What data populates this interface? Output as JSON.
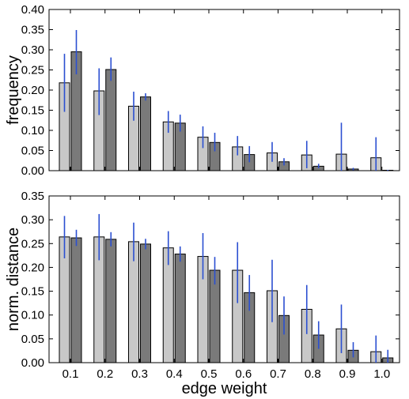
{
  "chart_data": [
    {
      "type": "bar",
      "ylabel": "frequency",
      "xlabel": "",
      "categories": [
        "0.1",
        "0.2",
        "0.3",
        "0.4",
        "0.5",
        "0.6",
        "0.7",
        "0.8",
        "0.9",
        "1.0"
      ],
      "ylim": [
        0,
        0.4
      ],
      "yticks": [
        "0.00",
        "0.05",
        "0.10",
        "0.15",
        "0.20",
        "0.25",
        "0.30",
        "0.35",
        "0.40"
      ],
      "series": [
        {
          "color": "#c8c8c8",
          "values": [
            0.218,
            0.198,
            0.16,
            0.121,
            0.083,
            0.059,
            0.044,
            0.039,
            0.041,
            0.032
          ],
          "err_low": [
            0.146,
            0.138,
            0.124,
            0.094,
            0.056,
            0.038,
            0.022,
            0.006,
            0.0,
            0.0
          ],
          "err_high": [
            0.29,
            0.254,
            0.196,
            0.148,
            0.11,
            0.086,
            0.071,
            0.074,
            0.119,
            0.083
          ]
        },
        {
          "color": "#7a7a7a",
          "values": [
            0.295,
            0.251,
            0.183,
            0.118,
            0.07,
            0.04,
            0.022,
            0.011,
            0.004,
            0.001
          ],
          "err_low": [
            0.239,
            0.223,
            0.174,
            0.097,
            0.048,
            0.021,
            0.013,
            0.006,
            0.001,
            0.0
          ],
          "err_high": [
            0.349,
            0.281,
            0.192,
            0.139,
            0.094,
            0.061,
            0.031,
            0.017,
            0.007,
            0.002
          ]
        }
      ],
      "error_bar_color": "#2b4fd1"
    },
    {
      "type": "bar",
      "ylabel": "norm. distance",
      "xlabel": "edge weight",
      "categories": [
        "0.1",
        "0.2",
        "0.3",
        "0.4",
        "0.5",
        "0.6",
        "0.7",
        "0.8",
        "0.9",
        "1.0"
      ],
      "ylim": [
        0,
        0.35
      ],
      "yticks": [
        "0.00",
        "0.05",
        "0.10",
        "0.15",
        "0.20",
        "0.25",
        "0.30",
        "0.35"
      ],
      "series": [
        {
          "color": "#c8c8c8",
          "values": [
            0.264,
            0.264,
            0.254,
            0.241,
            0.223,
            0.194,
            0.151,
            0.112,
            0.071,
            0.023
          ],
          "err_low": [
            0.219,
            0.215,
            0.213,
            0.205,
            0.175,
            0.125,
            0.085,
            0.06,
            0.02,
            0.0
          ],
          "err_high": [
            0.308,
            0.312,
            0.294,
            0.276,
            0.272,
            0.253,
            0.216,
            0.163,
            0.122,
            0.057
          ]
        },
        {
          "color": "#7a7a7a",
          "values": [
            0.262,
            0.259,
            0.249,
            0.228,
            0.194,
            0.147,
            0.099,
            0.058,
            0.026,
            0.01
          ],
          "err_low": [
            0.245,
            0.244,
            0.238,
            0.212,
            0.164,
            0.109,
            0.059,
            0.029,
            0.011,
            0.0
          ],
          "err_high": [
            0.279,
            0.274,
            0.26,
            0.244,
            0.222,
            0.184,
            0.139,
            0.087,
            0.043,
            0.027
          ]
        }
      ],
      "error_bar_color": "#2b4fd1"
    }
  ]
}
